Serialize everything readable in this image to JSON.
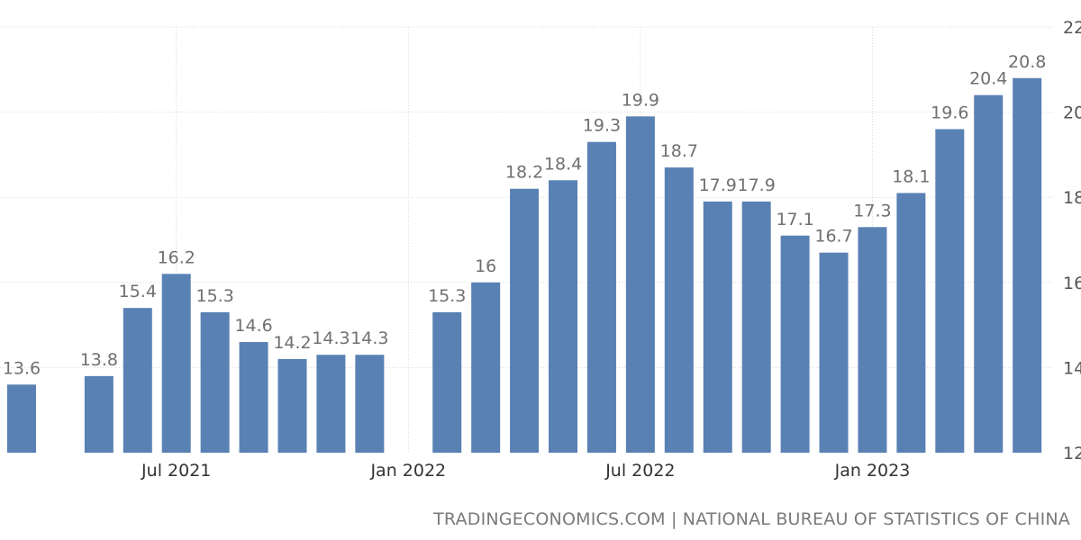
{
  "chart_data": {
    "type": "bar",
    "categories": [
      "Mar 2021",
      "Apr 2021",
      "May 2021",
      "Jun 2021",
      "Jul 2021",
      "Aug 2021",
      "Sep 2021",
      "Oct 2021",
      "Nov 2021",
      "Dec 2021",
      "Jan 2022",
      "Feb 2022",
      "Mar 2022",
      "Apr 2022",
      "May 2022",
      "Jun 2022",
      "Jul 2022",
      "Aug 2022",
      "Sep 2022",
      "Oct 2022",
      "Nov 2022",
      "Dec 2022",
      "Jan 2023",
      "Feb 2023",
      "Mar 2023",
      "Apr 2023",
      "May 2023"
    ],
    "values": [
      13.6,
      null,
      13.8,
      15.4,
      16.2,
      15.3,
      14.6,
      14.2,
      14.3,
      14.3,
      null,
      15.3,
      16,
      18.2,
      18.4,
      19.3,
      19.9,
      18.7,
      17.9,
      17.9,
      17.1,
      16.7,
      17.3,
      18.1,
      19.6,
      20.4,
      20.8
    ],
    "value_labels": [
      "13.6",
      "",
      "13.8",
      "15.4",
      "16.2",
      "15.3",
      "14.6",
      "14.2",
      "14.3",
      "14.3",
      "",
      "15.3",
      "16",
      "18.2",
      "18.4",
      "19.3",
      "19.9",
      "18.7",
      "17.9",
      "17.9",
      "17.1",
      "16.7",
      "17.3",
      "18.1",
      "19.6",
      "20.4",
      "20.8"
    ],
    "x_tick_labels": [
      {
        "index": 4,
        "label": "Jul 2021"
      },
      {
        "index": 10,
        "label": "Jan 2022"
      },
      {
        "index": 16,
        "label": "Jul 2022"
      },
      {
        "index": 22,
        "label": "Jan 2023"
      }
    ],
    "y_ticks": [
      12,
      14,
      16,
      18,
      20,
      22
    ],
    "ylim": [
      12,
      22
    ],
    "grid": true,
    "bar_color": "#5981b3",
    "label_color": "#707070",
    "title": "",
    "xlabel": "",
    "ylabel": ""
  },
  "source_text": "TRADINGECONOMICS.COM | NATIONAL BUREAU OF STATISTICS OF CHINA"
}
